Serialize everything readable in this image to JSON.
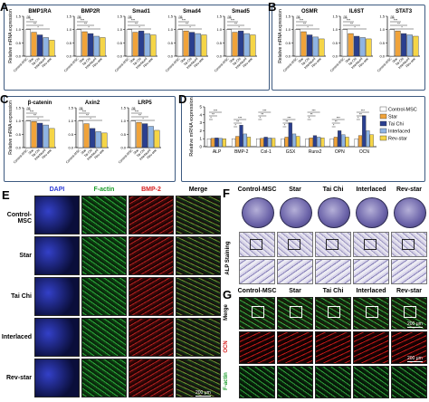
{
  "panels": {
    "A": "A",
    "B": "B",
    "C": "C",
    "D": "D",
    "E": "E",
    "F": "F",
    "G": "G"
  },
  "groups": [
    "Control-MSC",
    "Star",
    "Tai Chi",
    "Interlaced",
    "Rev-star"
  ],
  "colors": {
    "Control-MSC": "#ffffff",
    "Star": "#f0a33a",
    "Tai Chi": "#2a3f8f",
    "Interlaced": "#8fb4e3",
    "Rev-star": "#f5d547"
  },
  "ylabel": "Relative mRNA expression",
  "sig_labels": {
    "ns": "ns",
    "one": "*",
    "two": "**",
    "three": "***"
  },
  "chart_data": [
    {
      "panel": "A",
      "type": "bar",
      "title": "BMP1RA",
      "categories": [
        "Control-MSC",
        "Star",
        "Tai Chi",
        "Interlaced",
        "Rev-star"
      ],
      "values": [
        1.0,
        0.9,
        0.8,
        0.7,
        0.6
      ],
      "ylim": [
        0,
        1.5
      ],
      "yticks": [
        "0.0",
        "0.5",
        "1.0",
        "1.5"
      ]
    },
    {
      "panel": "A",
      "type": "bar",
      "title": "BMP2R",
      "categories": [
        "Control-MSC",
        "Star",
        "Tai Chi",
        "Interlaced",
        "Rev-star"
      ],
      "values": [
        1.0,
        0.92,
        0.85,
        0.75,
        0.7
      ],
      "ylim": [
        0,
        1.5
      ],
      "yticks": [
        "0.0",
        "0.5",
        "1.0",
        "1.5"
      ]
    },
    {
      "panel": "A",
      "type": "bar",
      "title": "Smad1",
      "categories": [
        "Control-MSC",
        "Star",
        "Tai Chi",
        "Interlaced",
        "Rev-star"
      ],
      "values": [
        1.0,
        0.9,
        0.95,
        0.85,
        0.8
      ],
      "ylim": [
        0,
        1.5
      ],
      "yticks": [
        "0.0",
        "0.5",
        "1.0",
        "1.5"
      ]
    },
    {
      "panel": "A",
      "type": "bar",
      "title": "Smad4",
      "categories": [
        "Control-MSC",
        "Star",
        "Tai Chi",
        "Interlaced",
        "Rev-star"
      ],
      "values": [
        1.0,
        0.95,
        0.9,
        0.85,
        0.8
      ],
      "ylim": [
        0,
        1.5
      ],
      "yticks": [
        "0.0",
        "0.5",
        "1.0",
        "1.5"
      ]
    },
    {
      "panel": "A",
      "type": "bar",
      "title": "Smad5",
      "categories": [
        "Control-MSC",
        "Star",
        "Tai Chi",
        "Interlaced",
        "Rev-star"
      ],
      "values": [
        1.0,
        0.9,
        0.95,
        0.85,
        0.8
      ],
      "ylim": [
        0,
        1.5
      ],
      "yticks": [
        "0.0",
        "0.5",
        "1.0",
        "1.5"
      ]
    },
    {
      "panel": "B",
      "type": "bar",
      "title": "OSMR",
      "categories": [
        "Control-MSC",
        "Star",
        "Tai Chi",
        "Interlaced",
        "Rev-star"
      ],
      "values": [
        1.0,
        0.92,
        0.8,
        0.72,
        0.65
      ],
      "ylim": [
        0,
        1.5
      ],
      "yticks": [
        "0.0",
        "0.5",
        "1.0",
        "1.5"
      ]
    },
    {
      "panel": "B",
      "type": "bar",
      "title": "IL6ST",
      "categories": [
        "Control-MSC",
        "Star",
        "Tai Chi",
        "Interlaced",
        "Rev-star"
      ],
      "values": [
        1.0,
        0.85,
        0.75,
        0.7,
        0.65
      ],
      "ylim": [
        0,
        1.5
      ],
      "yticks": [
        "0.0",
        "0.5",
        "1.0",
        "1.5"
      ]
    },
    {
      "panel": "B",
      "type": "bar",
      "title": "STAT3",
      "categories": [
        "Control-MSC",
        "Star",
        "Tai Chi",
        "Interlaced",
        "Rev-star"
      ],
      "values": [
        1.0,
        0.95,
        0.85,
        0.8,
        0.75
      ],
      "ylim": [
        0,
        1.5
      ],
      "yticks": [
        "0.0",
        "0.5",
        "1.0",
        "1.5"
      ]
    },
    {
      "panel": "C",
      "type": "bar",
      "title": "β-catenin",
      "categories": [
        "Control-MSC",
        "Star",
        "Tai Chi",
        "Interlaced",
        "Rev-star"
      ],
      "values": [
        1.0,
        0.98,
        0.92,
        0.85,
        0.72
      ],
      "ylim": [
        0,
        1.5
      ],
      "yticks": [
        "0.0",
        "0.5",
        "1.0",
        "1.5"
      ]
    },
    {
      "panel": "C",
      "type": "bar",
      "title": "Axin2",
      "categories": [
        "Control-MSC",
        "Star",
        "Tai Chi",
        "Interlaced",
        "Rev-star"
      ],
      "values": [
        1.0,
        0.9,
        0.72,
        0.6,
        0.55
      ],
      "ylim": [
        0,
        1.5
      ],
      "yticks": [
        "0.0",
        "0.5",
        "1.0",
        "1.5"
      ]
    },
    {
      "panel": "C",
      "type": "bar",
      "title": "LRP5",
      "categories": [
        "Control-MSC",
        "Star",
        "Tai Chi",
        "Interlaced",
        "Rev-star"
      ],
      "values": [
        1.0,
        0.95,
        0.9,
        0.8,
        0.65
      ],
      "ylim": [
        0,
        1.5
      ],
      "yticks": [
        "0.0",
        "0.5",
        "1.0",
        "1.5"
      ]
    },
    {
      "panel": "D",
      "type": "bar",
      "title": "",
      "categories": [
        "ALP",
        "BMP-2",
        "Col-1",
        "GSX",
        "Runx2",
        "OPN",
        "OCN"
      ],
      "series": [
        {
          "name": "Control-MSC",
          "values": [
            1.0,
            1.0,
            1.0,
            1.0,
            1.0,
            1.0,
            1.0
          ]
        },
        {
          "name": "Star",
          "values": [
            1.05,
            1.3,
            1.05,
            1.2,
            1.1,
            1.2,
            1.4
          ]
        },
        {
          "name": "Tai Chi",
          "values": [
            1.1,
            2.7,
            1.2,
            3.0,
            1.4,
            2.0,
            3.9
          ]
        },
        {
          "name": "Interlaced",
          "values": [
            1.05,
            1.6,
            1.1,
            1.6,
            1.2,
            1.5,
            2.0
          ]
        },
        {
          "name": "Rev-star",
          "values": [
            1.0,
            1.2,
            1.05,
            1.3,
            1.1,
            1.2,
            1.5
          ]
        }
      ],
      "ylim": [
        0,
        5
      ],
      "yticks": [
        "0",
        "1",
        "2",
        "3",
        "4",
        "5"
      ]
    }
  ],
  "E": {
    "cols": [
      "DAPI",
      "F-actin",
      "BMP-2",
      "Merge"
    ],
    "col_colors": [
      "#2d3bd6",
      "#1a9c2a",
      "#d62020",
      "#000000"
    ],
    "rows": [
      "Control-MSC",
      "Star",
      "Tai Chi",
      "Interlaced",
      "Rev-star"
    ],
    "scale": "200 μm"
  },
  "F": {
    "cols": [
      "Control-MSC",
      "Star",
      "Tai Chi",
      "Interlaced",
      "Rev-star"
    ],
    "side_label": "ALP Staining"
  },
  "G": {
    "cols": [
      "Control-MSC",
      "Star",
      "Tai Chi",
      "Interlaced",
      "Rev-star"
    ],
    "rows": [
      "Merge",
      "OCN",
      "F-actin"
    ],
    "row_colors": [
      "#000000",
      "#d62020",
      "#1a9c2a"
    ],
    "scale1": "200 μm",
    "scale2": "200 μm"
  }
}
